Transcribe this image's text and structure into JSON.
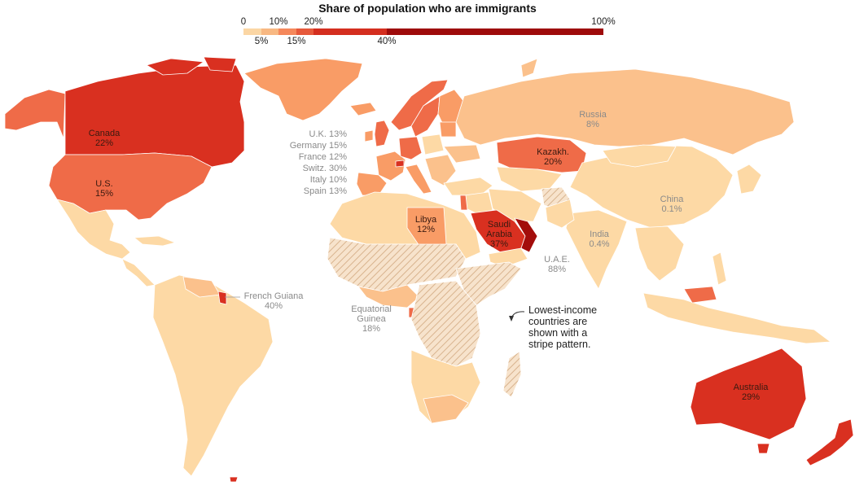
{
  "title": "Share of population who are immigrants",
  "legend": {
    "top_ticks": [
      "0",
      "10%",
      "20%",
      "100%"
    ],
    "bottom_ticks": [
      "5%",
      "15%",
      "40%"
    ],
    "colors": [
      "#fbd6a4",
      "#f8b882",
      "#f5885b",
      "#e6593b",
      "#d42e1f",
      "#9e0b0b"
    ]
  },
  "colors": {
    "c0": "#fdd9a5",
    "c1": "#fbc18c",
    "c2": "#f99c66",
    "c3": "#ef6b48",
    "c4": "#d93020",
    "c5": "#a30d0b",
    "ocean": "#ffffff",
    "stripe": "#e9c9a8"
  },
  "labels": {
    "canada": {
      "name": "Canada",
      "value": "22%"
    },
    "us": {
      "name": "U.S.",
      "value": "15%"
    },
    "russia": {
      "name": "Russia",
      "value": "8%"
    },
    "kazakh": {
      "name": "Kazakh.",
      "value": "20%"
    },
    "china": {
      "name": "China",
      "value": "0.1%"
    },
    "india": {
      "name": "India",
      "value": "0.4%"
    },
    "libya": {
      "name": "Libya",
      "value": "12%"
    },
    "saudi": {
      "name": "Saudi",
      "name2": "Arabia",
      "value": "37%"
    },
    "uae": {
      "name": "U.A.E.",
      "value": "88%"
    },
    "french_guiana": {
      "name": "French Guiana",
      "value": "40%"
    },
    "eq_guinea": {
      "name": "Equatorial",
      "name2": "Guinea",
      "value": "18%"
    },
    "australia": {
      "name": "Australia",
      "value": "29%"
    }
  },
  "europe_list": [
    "U.K. 13%",
    "Germany 15%",
    "France 12%",
    "Switz. 30%",
    "Italy 10%",
    "Spain 13%"
  ],
  "note": [
    "Lowest-income",
    "countries are",
    "shown with a",
    "stripe pattern."
  ]
}
